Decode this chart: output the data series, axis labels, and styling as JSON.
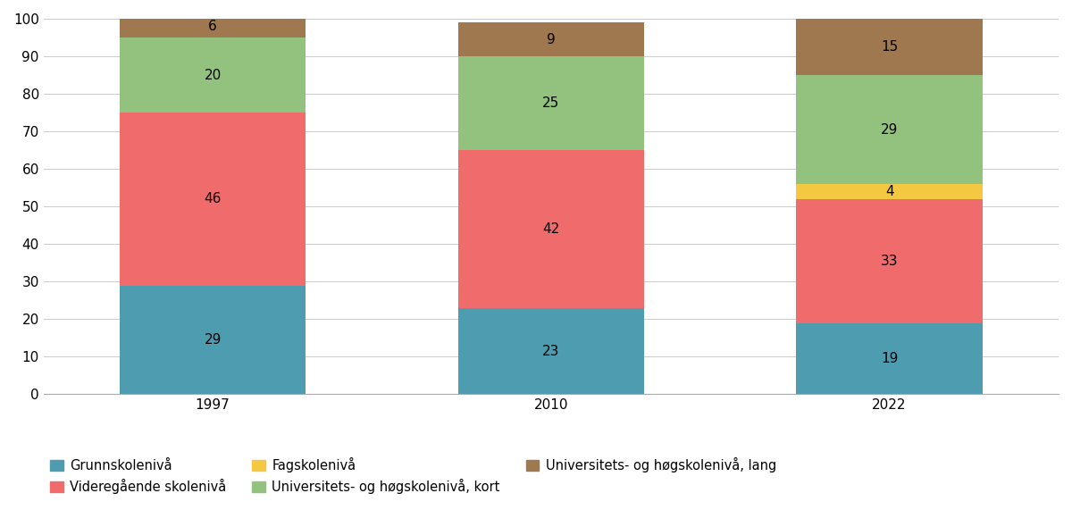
{
  "years": [
    "1997",
    "2010",
    "2022"
  ],
  "categories": [
    "Grunnskolenivå",
    "Videregående skolenivå",
    "Fagskolenivå",
    "Universitets- og høgskolenivå, kort",
    "Universitets- og høgskolenivå, lang"
  ],
  "legend_order": [
    "Grunnskolenivå",
    "Videregående skolenivå",
    "Fagskolenivå",
    "Universitets- og høgskolenivå, kort",
    "Universitets- og høgskolenivå, lang"
  ],
  "values": {
    "Grunnskolenivå": [
      29,
      23,
      19
    ],
    "Videregående skolenivå": [
      46,
      42,
      33
    ],
    "Fagskolenivå": [
      0,
      0,
      4
    ],
    "Universitets- og høgskolenivå, kort": [
      20,
      25,
      29
    ],
    "Universitets- og høgskolenivå, lang": [
      6,
      9,
      15
    ]
  },
  "colors": {
    "Grunnskolenivå": "#4e9cb0",
    "Videregående skolenivå": "#f06b6b",
    "Fagskolenivå": "#f5c842",
    "Universitets- og høgskolenivå, kort": "#92c27d",
    "Universitets- og høgskolenivå, lang": "#a07850"
  },
  "ylim": [
    0,
    100
  ],
  "yticks": [
    0,
    10,
    20,
    30,
    40,
    50,
    60,
    70,
    80,
    90,
    100
  ],
  "bar_width": 0.55,
  "figsize": [
    12.0,
    5.71
  ],
  "dpi": 100,
  "label_fontsize": 11,
  "legend_fontsize": 10.5,
  "tick_fontsize": 11
}
